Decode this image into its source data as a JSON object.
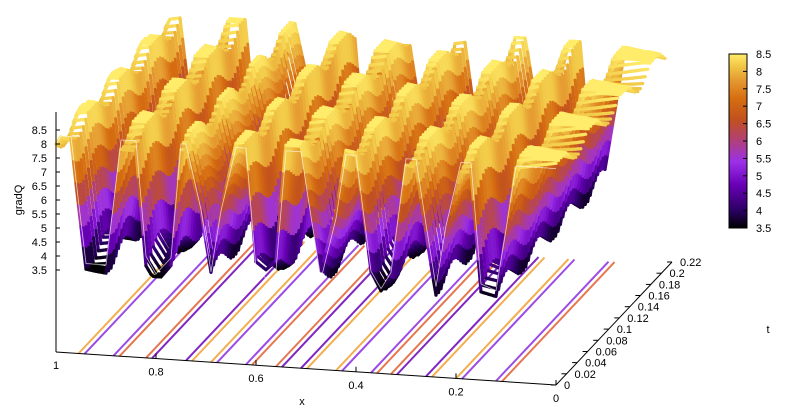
{
  "chart_data": {
    "type": "surface3d",
    "title": "",
    "xlabel": "x",
    "ylabel": "t",
    "zlabel": "gradQ",
    "x_ticks": [
      "1",
      "0.8",
      "0.6",
      "0.4",
      "0.2",
      "0"
    ],
    "t_ticks": [
      "0",
      "0.02",
      "0.04",
      "0.06",
      "0.08",
      "0.1",
      "0.12",
      "0.14",
      "0.16",
      "0.18",
      "0.2",
      "0.22"
    ],
    "z_ticks": [
      "3.5",
      "4",
      "4.5",
      "5",
      "5.5",
      "6",
      "6.5",
      "7",
      "7.5",
      "8",
      "8.5"
    ],
    "colorbar_ticks": [
      "8.5",
      "8",
      "7.5",
      "7",
      "6.5",
      "6",
      "5.5",
      "5",
      "4.5",
      "4",
      "3.5"
    ],
    "xlim": [
      1,
      0
    ],
    "tlim": [
      0,
      0.22
    ],
    "zlim": [
      3.5,
      8.5
    ],
    "palette": [
      "#000000",
      "#2a0062",
      "#6a00b8",
      "#9b30e8",
      "#b0407a",
      "#c1501f",
      "#d56c10",
      "#e59a30",
      "#f1c645",
      "#ffec6a"
    ],
    "profile_at_t0": {
      "x": [
        1.0,
        0.99,
        0.97,
        0.955,
        0.94,
        0.9,
        0.885,
        0.87,
        0.84,
        0.82,
        0.8,
        0.77,
        0.75,
        0.74,
        0.71,
        0.69,
        0.67,
        0.64,
        0.62,
        0.6,
        0.58,
        0.56,
        0.54,
        0.51,
        0.49,
        0.47,
        0.44,
        0.42,
        0.4,
        0.37,
        0.35,
        0.33,
        0.3,
        0.28,
        0.26,
        0.24,
        0.22,
        0.19,
        0.17,
        0.15,
        0.12,
        0.1,
        0.08,
        0.0
      ],
      "gradQ": [
        8.0,
        8.3,
        8.3,
        6.0,
        3.8,
        3.8,
        6.0,
        8.3,
        8.3,
        4.2,
        3.6,
        4.2,
        8.3,
        8.3,
        6.0,
        3.8,
        6.0,
        8.3,
        8.3,
        4.0,
        3.7,
        4.0,
        8.3,
        8.3,
        6.0,
        3.8,
        6.0,
        8.3,
        8.3,
        4.2,
        3.6,
        4.2,
        8.3,
        8.3,
        6.0,
        3.8,
        6.0,
        8.3,
        8.3,
        4.0,
        3.8,
        6.0,
        8.3,
        8.3
      ]
    },
    "contour_band_x_at_t0": [
      0.955,
      0.885,
      0.82,
      0.74,
      0.69,
      0.62,
      0.56,
      0.51,
      0.44,
      0.37,
      0.33,
      0.26,
      0.2,
      0.12
    ]
  }
}
